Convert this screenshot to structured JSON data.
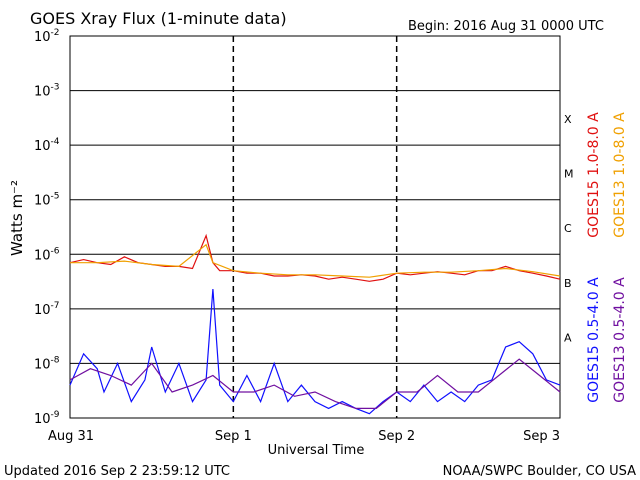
{
  "header": {
    "title": "GOES Xray Flux (1-minute data)",
    "begin": "Begin:  2016 Aug 31 0000 UTC"
  },
  "footer": {
    "updated": "Updated 2016 Sep  2 23:59:12 UTC",
    "credit": "NOAA/SWPC Boulder, CO USA"
  },
  "colors": {
    "goes15_long": "#e01010",
    "goes13_long": "#f0a000",
    "goes15_short": "#1010ff",
    "goes13_short": "#7010a0",
    "grid": "#000000"
  },
  "chart_data": {
    "type": "line",
    "title": "GOES Xray Flux (1-minute data)",
    "xlabel": "Universal Time",
    "ylabel": "Watts m⁻²",
    "y_scale": "log",
    "ylim": [
      1e-09,
      0.01
    ],
    "y_tick_labels": [
      {
        "mant": "10",
        "exp": "-2"
      },
      {
        "mant": "10",
        "exp": "-3"
      },
      {
        "mant": "10",
        "exp": "-4"
      },
      {
        "mant": "10",
        "exp": "-5"
      },
      {
        "mant": "10",
        "exp": "-6"
      },
      {
        "mant": "10",
        "exp": "-7"
      },
      {
        "mant": "10",
        "exp": "-8"
      },
      {
        "mant": "10",
        "exp": "-9"
      }
    ],
    "x_ticks": [
      "Aug 31",
      "Sep 1",
      "Sep 2",
      "Sep 3"
    ],
    "xlim_hours": [
      0,
      72
    ],
    "flare_classes": [
      {
        "label": "X",
        "value": 0.0003
      },
      {
        "label": "M",
        "value": 3e-05
      },
      {
        "label": "C",
        "value": 3e-06
      },
      {
        "label": "B",
        "value": 3e-07
      },
      {
        "label": "A",
        "value": 3e-08
      }
    ],
    "legend_right": [
      {
        "name": "GOES15 1.0-8.0 A",
        "color": "#e01010"
      },
      {
        "name": "GOES13 1.0-8.0 A",
        "color": "#f0a000"
      },
      {
        "name": "GOES15 0.5-4.0 A",
        "color": "#1010ff"
      },
      {
        "name": "GOES13 0.5-4.0 A",
        "color": "#7010a0"
      }
    ],
    "series": [
      {
        "name": "GOES15 1.0-8.0 A",
        "x_hours": [
          0,
          2,
          4,
          6,
          8,
          10,
          12,
          14,
          16,
          18,
          20,
          21,
          22,
          24,
          26,
          28,
          30,
          32,
          34,
          36,
          38,
          40,
          42,
          44,
          46,
          48,
          50,
          52,
          54,
          56,
          58,
          60,
          62,
          64,
          66,
          68,
          70,
          72
        ],
        "values": [
          7e-07,
          8e-07,
          7e-07,
          6.5e-07,
          9e-07,
          7e-07,
          6.5e-07,
          6e-07,
          6e-07,
          5.5e-07,
          2.2e-06,
          7e-07,
          5e-07,
          5e-07,
          4.5e-07,
          4.5e-07,
          4e-07,
          4e-07,
          4.2e-07,
          4e-07,
          3.5e-07,
          3.8e-07,
          3.5e-07,
          3.2e-07,
          3.5e-07,
          4.5e-07,
          4.2e-07,
          4.5e-07,
          4.8e-07,
          4.5e-07,
          4.2e-07,
          5e-07,
          5e-07,
          6e-07,
          5e-07,
          4.5e-07,
          4e-07,
          3.5e-07
        ]
      },
      {
        "name": "GOES13 1.0-8.0 A",
        "x_hours": [
          0,
          4,
          8,
          12,
          16,
          20,
          21,
          24,
          28,
          32,
          36,
          40,
          44,
          48,
          52,
          56,
          60,
          64,
          68,
          72
        ],
        "values": [
          7e-07,
          7e-07,
          7.5e-07,
          6.5e-07,
          6e-07,
          1.5e-06,
          7e-07,
          5e-07,
          4.5e-07,
          4.2e-07,
          4.2e-07,
          4e-07,
          3.8e-07,
          4.5e-07,
          4.7e-07,
          4.7e-07,
          5e-07,
          5.5e-07,
          4.8e-07,
          4e-07
        ]
      },
      {
        "name": "GOES15 0.5-4.0 A",
        "x_hours": [
          0,
          2,
          4,
          5,
          7,
          9,
          11,
          12,
          14,
          16,
          18,
          20,
          21,
          22,
          24,
          26,
          28,
          30,
          32,
          34,
          36,
          38,
          40,
          42,
          44,
          46,
          48,
          50,
          52,
          54,
          56,
          58,
          60,
          62,
          64,
          66,
          68,
          70,
          72
        ],
        "values": [
          4e-09,
          1.5e-08,
          8e-09,
          3e-09,
          1e-08,
          2e-09,
          5e-09,
          2e-08,
          3e-09,
          1e-08,
          2e-09,
          5e-09,
          2.3e-07,
          4e-09,
          2e-09,
          6e-09,
          2e-09,
          1e-08,
          2e-09,
          4e-09,
          2e-09,
          1.5e-09,
          2e-09,
          1.5e-09,
          1.2e-09,
          2e-09,
          3e-09,
          2e-09,
          4e-09,
          2e-09,
          3e-09,
          2e-09,
          4e-09,
          5e-09,
          2e-08,
          2.5e-08,
          1.5e-08,
          5e-09,
          4e-09
        ]
      },
      {
        "name": "GOES13 0.5-4.0 A",
        "x_hours": [
          0,
          3,
          6,
          9,
          12,
          15,
          18,
          21,
          24,
          27,
          30,
          33,
          36,
          39,
          42,
          45,
          48,
          51,
          54,
          57,
          60,
          63,
          66,
          69,
          72
        ],
        "values": [
          5e-09,
          8e-09,
          6e-09,
          4e-09,
          1e-08,
          3e-09,
          4e-09,
          6e-09,
          3e-09,
          3e-09,
          4e-09,
          2.5e-09,
          3e-09,
          2e-09,
          1.5e-09,
          1.5e-09,
          3e-09,
          3e-09,
          6e-09,
          3e-09,
          3e-09,
          6e-09,
          1.2e-08,
          6e-09,
          3e-09
        ]
      }
    ]
  }
}
